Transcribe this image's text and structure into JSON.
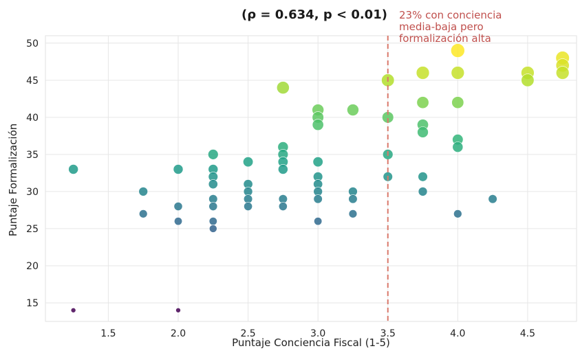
{
  "chart_data": {
    "type": "scatter",
    "title": "(ρ = 0.634, p < 0.01)",
    "xlabel": "Puntaje Conciencia Fiscal (1-5)",
    "ylabel": "Puntaje Formalización",
    "xlim": [
      1.05,
      4.85
    ],
    "ylim": [
      12.5,
      51
    ],
    "xticks": [
      "1.5",
      "2.0",
      "2.5",
      "3.0",
      "3.5",
      "4.0",
      "4.5"
    ],
    "yticks": [
      "15",
      "20",
      "25",
      "30",
      "35",
      "40",
      "45",
      "50"
    ],
    "grid": true,
    "colormap": "viridis",
    "reference_line": {
      "x": 3.5,
      "color": "#d9786a",
      "style": "dashed"
    },
    "annotation": {
      "lines": [
        "23% con conciencia",
        "media-baja pero",
        "formalización alta"
      ],
      "color": "#c0504d"
    },
    "points": [
      {
        "x": 1.25,
        "y": 33
      },
      {
        "x": 1.25,
        "y": 14
      },
      {
        "x": 1.75,
        "y": 30
      },
      {
        "x": 1.75,
        "y": 27
      },
      {
        "x": 2.0,
        "y": 33
      },
      {
        "x": 2.0,
        "y": 28
      },
      {
        "x": 2.0,
        "y": 26
      },
      {
        "x": 2.0,
        "y": 14
      },
      {
        "x": 2.25,
        "y": 35
      },
      {
        "x": 2.25,
        "y": 33
      },
      {
        "x": 2.25,
        "y": 32
      },
      {
        "x": 2.25,
        "y": 31
      },
      {
        "x": 2.25,
        "y": 29
      },
      {
        "x": 2.25,
        "y": 28
      },
      {
        "x": 2.25,
        "y": 26
      },
      {
        "x": 2.25,
        "y": 25
      },
      {
        "x": 2.5,
        "y": 34
      },
      {
        "x": 2.5,
        "y": 31
      },
      {
        "x": 2.5,
        "y": 30
      },
      {
        "x": 2.5,
        "y": 29
      },
      {
        "x": 2.5,
        "y": 28
      },
      {
        "x": 2.75,
        "y": 44
      },
      {
        "x": 2.75,
        "y": 36
      },
      {
        "x": 2.75,
        "y": 35
      },
      {
        "x": 2.75,
        "y": 34
      },
      {
        "x": 2.75,
        "y": 33
      },
      {
        "x": 2.75,
        "y": 29
      },
      {
        "x": 2.75,
        "y": 28
      },
      {
        "x": 3.0,
        "y": 41
      },
      {
        "x": 3.0,
        "y": 40
      },
      {
        "x": 3.0,
        "y": 39
      },
      {
        "x": 3.0,
        "y": 34
      },
      {
        "x": 3.0,
        "y": 32
      },
      {
        "x": 3.0,
        "y": 31
      },
      {
        "x": 3.0,
        "y": 30
      },
      {
        "x": 3.0,
        "y": 29
      },
      {
        "x": 3.0,
        "y": 26
      },
      {
        "x": 3.25,
        "y": 41
      },
      {
        "x": 3.25,
        "y": 30
      },
      {
        "x": 3.25,
        "y": 29
      },
      {
        "x": 3.25,
        "y": 27
      },
      {
        "x": 3.5,
        "y": 45
      },
      {
        "x": 3.5,
        "y": 40
      },
      {
        "x": 3.5,
        "y": 35
      },
      {
        "x": 3.5,
        "y": 32
      },
      {
        "x": 3.75,
        "y": 46
      },
      {
        "x": 3.75,
        "y": 42
      },
      {
        "x": 3.75,
        "y": 39
      },
      {
        "x": 3.75,
        "y": 38
      },
      {
        "x": 3.75,
        "y": 32
      },
      {
        "x": 3.75,
        "y": 30
      },
      {
        "x": 4.0,
        "y": 49
      },
      {
        "x": 4.0,
        "y": 46
      },
      {
        "x": 4.0,
        "y": 42
      },
      {
        "x": 4.0,
        "y": 37
      },
      {
        "x": 4.0,
        "y": 36
      },
      {
        "x": 4.0,
        "y": 27
      },
      {
        "x": 4.25,
        "y": 29
      },
      {
        "x": 4.5,
        "y": 46
      },
      {
        "x": 4.5,
        "y": 45
      },
      {
        "x": 4.75,
        "y": 48
      },
      {
        "x": 4.75,
        "y": 47
      },
      {
        "x": 4.75,
        "y": 46
      }
    ]
  }
}
